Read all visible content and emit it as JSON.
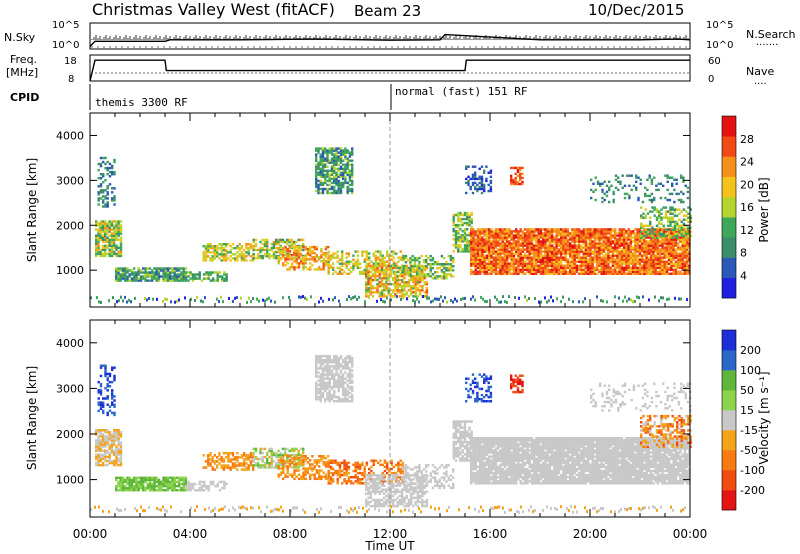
{
  "header": {
    "title": "Christmas Valley West (fitACF)",
    "beam": "Beam 23",
    "date": "10/Dec/2015"
  },
  "top_panels": {
    "nsky": {
      "left_label": "N.Sky",
      "right_label": "N.Search",
      "right_dots": "·······",
      "left_ticks": [
        "10^5",
        "10^0"
      ],
      "right_ticks": [
        "10^5",
        "10^0"
      ]
    },
    "freq": {
      "left_label_1": "Freq.",
      "left_label_2": "[MHz]",
      "right_label": "Nave",
      "right_dots": "····",
      "left_ticks": [
        "18",
        "8"
      ],
      "right_ticks": [
        "60",
        "0"
      ]
    },
    "cpid": {
      "label": "CPID",
      "mode_1": "themis 3300 RF",
      "mode_2": "normal (fast) 151 RF"
    }
  },
  "xaxis": {
    "ticks": [
      "00:00",
      "04:00",
      "08:00",
      "12:00",
      "16:00",
      "20:00",
      "00:00"
    ],
    "label": "Time UT"
  },
  "colors": {
    "power_scale": [
      "#1f1fe0",
      "#2a59b8",
      "#3d8c6a",
      "#3ea75a",
      "#b6d430",
      "#f4c21c",
      "#f78f1c",
      "#f24a16",
      "#e31313"
    ],
    "velocity_scale": [
      "#1c2fd6",
      "#2b67c9",
      "#5fb63a",
      "#8ad34a",
      "#c8c8c8",
      "#f4a41b",
      "#f77a12",
      "#f14b12",
      "#e51414"
    ]
  },
  "chart_data": [
    {
      "type": "line",
      "panel": "N.Sky / N.Search",
      "title": "",
      "x_range_hours": [
        0,
        24
      ],
      "y_scale": "log",
      "ylim": [
        1,
        100000
      ],
      "series": [
        {
          "name": "N.Sky",
          "x": [
            0,
            0.2,
            0.4,
            3,
            3.2,
            6,
            9,
            12,
            14,
            14.2,
            18,
            22,
            23.5,
            24
          ],
          "y": [
            3,
            30,
            30,
            30,
            60,
            60,
            80,
            50,
            60,
            600,
            60,
            60,
            80,
            60
          ]
        }
      ]
    },
    {
      "type": "line",
      "panel": "Freq. / Nave",
      "x_range_hours": [
        0,
        24
      ],
      "ylim": [
        8,
        18
      ],
      "series": [
        {
          "name": "Freq.",
          "x": [
            0,
            0.2,
            3,
            3.05,
            15,
            15.05,
            24
          ],
          "y": [
            8,
            16,
            16,
            12,
            12,
            16,
            16
          ]
        }
      ]
    },
    {
      "type": "heatmap",
      "panel": "Power",
      "xlabel": "Time UT",
      "ylabel": "Slant Range [km]",
      "x_range_hours": [
        0,
        24
      ],
      "yticks": [
        1000,
        2000,
        3000,
        4000
      ],
      "ylim": [
        180,
        4500
      ],
      "colorbar": {
        "label": "Power [dB]",
        "ticks": [
          4,
          8,
          12,
          16,
          20,
          24,
          28
        ]
      }
    },
    {
      "type": "heatmap",
      "panel": "Velocity",
      "xlabel": "Time UT",
      "ylabel": "Slant Range [km]",
      "x_range_hours": [
        0,
        24
      ],
      "yticks": [
        1000,
        2000,
        3000,
        4000
      ],
      "ylim": [
        180,
        4500
      ],
      "colorbar": {
        "label": "Velocity [m s⁻¹]",
        "ticks": [
          200,
          100,
          50,
          15,
          -15,
          -50,
          -100,
          -200
        ]
      }
    }
  ]
}
